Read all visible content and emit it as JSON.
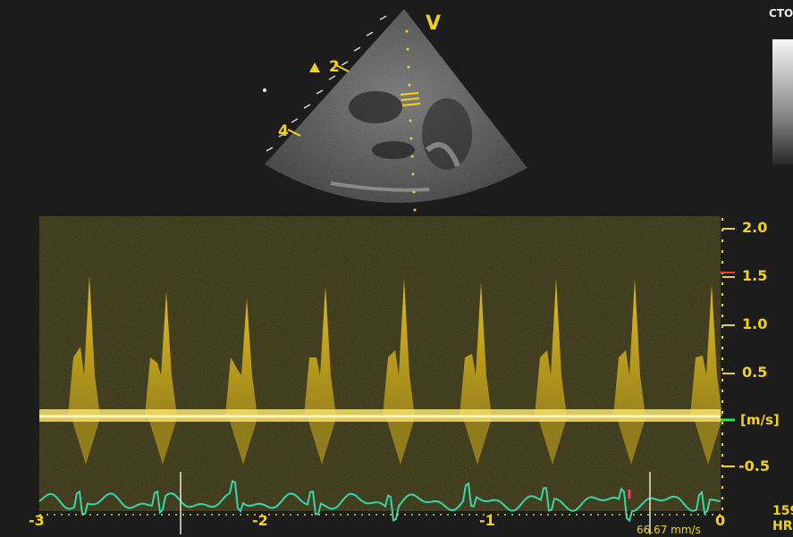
{
  "echo": {
    "view_label": "V",
    "marker_2": "2",
    "marker_4": "4",
    "cfm_label": "CTO"
  },
  "velocity_scale": {
    "ticks": [
      "2.0",
      "1.5",
      "1.0",
      "0.5",
      "[m/s]",
      "-0.5"
    ],
    "unit": "[m/s]"
  },
  "time_axis": {
    "ticks": [
      "-3",
      "-2",
      "-1",
      "0"
    ]
  },
  "status": {
    "sweep_speed": "66.67 mm/s",
    "hr_value": "159",
    "hr_label": "HR"
  },
  "colors": {
    "doppler": "#f2c81a",
    "ecg": "#38d6a8",
    "scale": "#f5d21a"
  }
}
